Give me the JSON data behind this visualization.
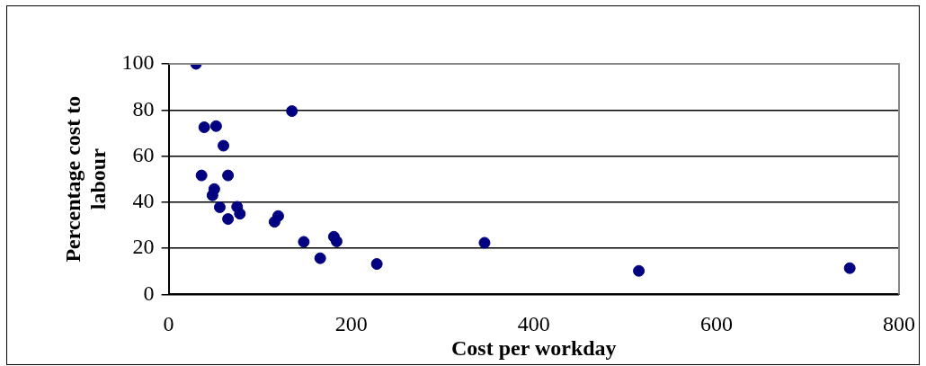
{
  "chart_data": {
    "type": "scatter",
    "xlabel": "Cost per workday",
    "ylabel": "Percentage cost to labour",
    "series": [
      {
        "color": "#000080",
        "x": [
          30,
          135,
          39,
          52,
          60,
          36,
          65,
          50,
          48,
          56,
          75,
          78,
          65,
          120,
          116,
          148,
          181,
          184,
          166,
          228,
          346,
          515,
          746
        ],
        "values": [
          100,
          79.5,
          72.5,
          73,
          64.5,
          51.6,
          51.6,
          45.7,
          43,
          37.8,
          38,
          35,
          32.7,
          34,
          31.5,
          22.8,
          25,
          23,
          15.7,
          13.2,
          22.4,
          10.2,
          11.4
        ]
      }
    ],
    "xlim": [
      0,
      800
    ],
    "xticks": [
      0,
      200,
      400,
      600,
      800
    ],
    "ylim": [
      0,
      100
    ],
    "yticks": [
      0,
      20,
      40,
      60,
      80,
      100
    ],
    "grid": "y",
    "legend": false,
    "marker": "circle"
  }
}
